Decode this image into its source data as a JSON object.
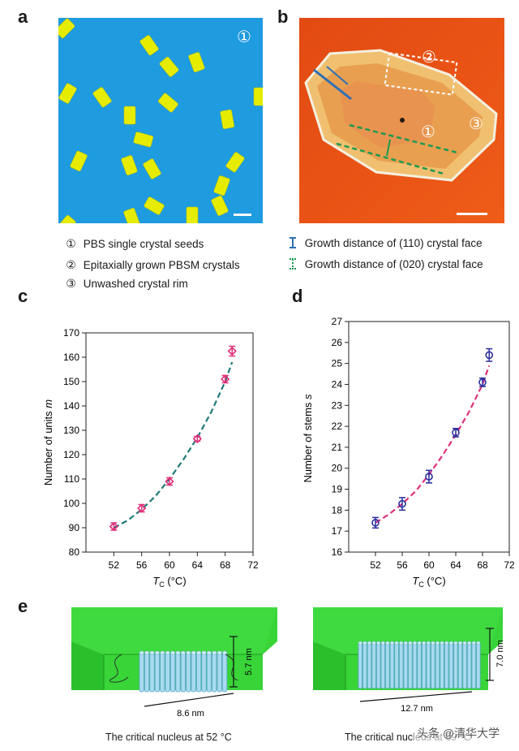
{
  "panels": {
    "a": {
      "letter": "a",
      "marker": "①"
    },
    "b": {
      "letter": "b",
      "markers": [
        "③",
        "①",
        "②"
      ]
    },
    "c": {
      "letter": "c"
    },
    "d": {
      "letter": "d"
    },
    "e": {
      "letter": "e"
    }
  },
  "legend": {
    "items": [
      {
        "num": "①",
        "text": "PBS single crystal seeds"
      },
      {
        "num": "②",
        "text": "Epitaxially grown PBSM crystals"
      },
      {
        "num": "③",
        "text": "Unwashed crystal rim"
      },
      {
        "text": "Growth distance of (110) crystal face",
        "color": "#2e6fb5"
      },
      {
        "text": "Growth distance of (020) crystal face",
        "color": "#1e9a50"
      }
    ]
  },
  "chart_data": [
    {
      "type": "scatter",
      "panel": "c",
      "xlabel_main": "T",
      "xlabel_sub": "C",
      "xlabel_unit": " (°C)",
      "ylabel_main": "Number of units ",
      "ylabel_var": "m",
      "xlim": [
        48,
        72
      ],
      "ylim": [
        80,
        170
      ],
      "xticks": [
        52,
        56,
        60,
        64,
        68,
        72
      ],
      "yticks": [
        80,
        90,
        100,
        110,
        120,
        130,
        140,
        150,
        160,
        170
      ],
      "marker_color": "#e0307a",
      "fit_color": "#1f7a78",
      "x": [
        52,
        56,
        60,
        64,
        68,
        69
      ],
      "y": [
        90.5,
        98,
        109,
        126.5,
        151,
        162.5
      ],
      "yerr": [
        1.5,
        1.5,
        1.5,
        1,
        1.5,
        2
      ],
      "fit": {
        "x": [
          52,
          54,
          56,
          58,
          60,
          62,
          64,
          66,
          68,
          69
        ],
        "y": [
          90,
          93,
          97.5,
          103,
          110,
          118,
          127,
          137.5,
          150,
          158
        ]
      }
    },
    {
      "type": "scatter",
      "panel": "d",
      "xlabel_main": "T",
      "xlabel_sub": "C",
      "xlabel_unit": " (°C)",
      "ylabel_main": "Number of stems ",
      "ylabel_var": "s",
      "xlim": [
        48,
        72
      ],
      "ylim": [
        16,
        27
      ],
      "xticks": [
        52,
        56,
        60,
        64,
        68,
        72
      ],
      "yticks": [
        16,
        17,
        18,
        19,
        20,
        21,
        22,
        23,
        24,
        25,
        26,
        27
      ],
      "marker_color": "#2a2f9e",
      "fit_color": "#e0307a",
      "x": [
        52,
        56,
        60,
        64,
        68,
        69
      ],
      "y": [
        17.4,
        18.3,
        19.6,
        21.7,
        24.1,
        25.4
      ],
      "yerr": [
        0.25,
        0.3,
        0.3,
        0.2,
        0.2,
        0.3
      ],
      "fit": {
        "x": [
          52,
          54,
          56,
          58,
          60,
          62,
          64,
          66,
          68,
          69
        ],
        "y": [
          17.4,
          17.8,
          18.3,
          18.9,
          19.7,
          20.6,
          21.6,
          22.7,
          24.0,
          24.9
        ]
      }
    }
  ],
  "panel_e": {
    "left": {
      "height_label": "5.7 nm",
      "width_label": "8.6 nm",
      "caption": "The critical nucleus at 52 °C"
    },
    "right": {
      "height_label": "7.0 nm",
      "width_label": "12.7 nm",
      "caption": "The critical nucleus at 69 °C"
    }
  },
  "watermark": "头条 @清华大学",
  "colors": {
    "afm_blue": "#1f9be0",
    "crystal_yellow": "#e8ee00",
    "afm_orange": "#e84a10",
    "green_slab": "#39d639",
    "stem_blue": "#a8daf0"
  }
}
